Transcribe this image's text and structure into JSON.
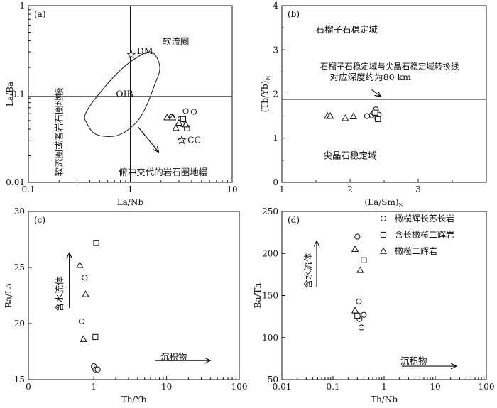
{
  "chart_data": [
    {
      "id": "a",
      "type": "scatter",
      "panel_label": "(a)",
      "xlabel": "La/Nb",
      "ylabel": "La/Ba",
      "x_scale": "log",
      "y_scale": "log",
      "xlim": [
        0.1,
        10
      ],
      "ylim": [
        0.01,
        1
      ],
      "x_ticks": [
        {
          "v": 0.1,
          "label": "0.1"
        },
        {
          "v": 1,
          "label": "1"
        },
        {
          "v": 10,
          "label": "10"
        }
      ],
      "y_ticks": [
        {
          "v": 0.01,
          "label": "0.01"
        },
        {
          "v": 0.1,
          "label": "0.1"
        },
        {
          "v": 1,
          "label": "1"
        }
      ],
      "ref_lines": [
        {
          "axis": "x",
          "value": 1
        },
        {
          "axis": "y",
          "value": 0.094
        }
      ],
      "oib_field": {
        "label": "OIB",
        "label_at": [
          0.88,
          0.1
        ],
        "outline": [
          [
            0.37,
            0.048
          ],
          [
            0.46,
            0.035
          ],
          [
            0.75,
            0.034
          ],
          [
            1.15,
            0.048
          ],
          [
            1.45,
            0.075
          ],
          [
            1.7,
            0.12
          ],
          [
            1.95,
            0.2
          ],
          [
            1.6,
            0.3
          ],
          [
            1.05,
            0.24
          ],
          [
            0.7,
            0.16
          ],
          [
            0.43,
            0.082
          ],
          [
            0.36,
            0.058
          ]
        ]
      },
      "arrow": {
        "from": [
          1.2,
          0.042
        ],
        "to": [
          1.9,
          0.022
        ]
      },
      "annotations": [
        {
          "text": "软流圈",
          "at": [
            2.8,
            0.39
          ]
        },
        {
          "text": "软流圈或者岩石圈地幔",
          "at": [
            0.215,
            0.04
          ],
          "rotate": -90
        },
        {
          "text": "俯冲交代的岩石圈地幔",
          "at": [
            2.1,
            0.013
          ]
        }
      ],
      "reference_points": [
        {
          "name": "DM",
          "x": 1.02,
          "y": 0.28
        },
        {
          "name": "CC",
          "x": 3.2,
          "y": 0.03
        }
      ],
      "series": [
        {
          "name": "橄榄辉长苏长岩",
          "marker": "circle",
          "points": [
            [
              3.1,
              0.052
            ],
            [
              3.5,
              0.064
            ],
            [
              4.2,
              0.063
            ],
            [
              2.55,
              0.055
            ],
            [
              3.2,
              0.046
            ]
          ]
        },
        {
          "name": "含长橄榄二辉岩",
          "marker": "square",
          "points": [
            [
              3.6,
              0.041
            ],
            [
              3.3,
              0.052
            ]
          ]
        },
        {
          "name": "橄榄二辉岩",
          "marker": "triangle",
          "points": [
            [
              2.3,
              0.054
            ],
            [
              2.6,
              0.054
            ],
            [
              2.8,
              0.041
            ],
            [
              3.5,
              0.045
            ],
            [
              3.0,
              0.047
            ]
          ]
        }
      ]
    },
    {
      "id": "b",
      "type": "scatter",
      "panel_label": "(b)",
      "xlabel": "(La/Sm)",
      "xlabel_sub": "N",
      "ylabel": "(Tb/Yb)",
      "ylabel_sub": "N",
      "x_scale": "linear",
      "y_scale": "linear",
      "xlim": [
        1,
        4
      ],
      "ylim": [
        0,
        4
      ],
      "x_ticks": [
        {
          "v": 1,
          "label": "1"
        },
        {
          "v": 2,
          "label": "2"
        },
        {
          "v": 3,
          "label": "3"
        }
      ],
      "y_ticks": [
        {
          "v": 0,
          "label": "0"
        },
        {
          "v": 1,
          "label": "1"
        },
        {
          "v": 2,
          "label": "2"
        },
        {
          "v": 3,
          "label": "3"
        },
        {
          "v": 4,
          "label": "4"
        }
      ],
      "ref_lines": [
        {
          "axis": "y",
          "value": 1.88
        }
      ],
      "arrow": {
        "from": [
          2.32,
          2.1
        ],
        "to": [
          2.45,
          1.94
        ]
      },
      "annotations": [
        {
          "text": "石榴子石稳定域",
          "at": [
            1.95,
            3.45
          ]
        },
        {
          "text": "石榴子石稳定域与尖晶石稳定域转换线",
          "at": [
            2.58,
            2.63
          ]
        },
        {
          "text": "对应深度约为80 km",
          "at": [
            2.3,
            2.38
          ]
        },
        {
          "text": "尖晶石稳定域",
          "at": [
            2.0,
            0.6
          ]
        }
      ],
      "series": [
        {
          "name": "橄榄辉长苏长岩",
          "marker": "circle",
          "points": [
            [
              2.32,
              1.52
            ],
            [
              2.35,
              1.57
            ],
            [
              2.38,
              1.65
            ],
            [
              2.42,
              1.53
            ],
            [
              2.25,
              1.5
            ],
            [
              2.4,
              1.45
            ]
          ]
        },
        {
          "name": "含长橄榄二辉岩",
          "marker": "square",
          "points": [
            [
              2.41,
              1.43
            ],
            [
              2.37,
              1.58
            ]
          ]
        },
        {
          "name": "橄榄二辉岩",
          "marker": "triangle",
          "points": [
            [
              1.67,
              1.5
            ],
            [
              1.71,
              1.5
            ],
            [
              1.93,
              1.45
            ],
            [
              2.05,
              1.49
            ]
          ]
        }
      ]
    },
    {
      "id": "c",
      "type": "scatter",
      "panel_label": "(c)",
      "xlabel": "Th/Yb",
      "ylabel": "Ba/La",
      "x_scale": "log",
      "y_scale": "linear",
      "xlim_display": [
        0,
        100
      ],
      "ylim": [
        15,
        30
      ],
      "x_ticks": [
        {
          "v": 0,
          "label": "0"
        },
        {
          "v": 1,
          "label": "1"
        },
        {
          "v": 10,
          "label": "10"
        },
        {
          "v": 100,
          "label": "100"
        }
      ],
      "y_ticks": [
        {
          "v": 15,
          "label": "15"
        },
        {
          "v": 20,
          "label": "20"
        },
        {
          "v": 25,
          "label": "25"
        },
        {
          "v": 30,
          "label": "30"
        }
      ],
      "annotations": [
        {
          "text": "含水流体",
          "at": [
            0.37,
            22.9
          ],
          "rotate": -90
        },
        {
          "text": "沉积物",
          "at": [
            12.5,
            17.0
          ]
        }
      ],
      "arrows": [
        {
          "from": [
            0.46,
            21.4
          ],
          "to": [
            0.46,
            26.3
          ]
        },
        {
          "from": [
            7.0,
            16.7
          ],
          "to": [
            40.0,
            16.7
          ]
        }
      ],
      "series": [
        {
          "name": "橄榄辉长苏长岩",
          "marker": "circle",
          "points": [
            [
              0.75,
              24.1
            ],
            [
              0.68,
              20.2
            ],
            [
              1.0,
              16.2
            ],
            [
              1.05,
              15.9
            ],
            [
              1.13,
              15.9
            ]
          ]
        },
        {
          "name": "含长橄榄二辉岩",
          "marker": "square",
          "points": [
            [
              1.08,
              27.2
            ],
            [
              1.05,
              18.8
            ]
          ]
        },
        {
          "name": "橄榄二辉岩",
          "marker": "triangle",
          "points": [
            [
              0.64,
              25.2
            ],
            [
              0.77,
              22.6
            ],
            [
              0.72,
              18.6
            ]
          ]
        }
      ]
    },
    {
      "id": "d",
      "type": "scatter",
      "panel_label": "(d)",
      "xlabel": "Th/Nb",
      "ylabel": "Ba/Th",
      "x_scale": "log",
      "y_scale": "linear",
      "xlim": [
        0.01,
        100
      ],
      "ylim": [
        50,
        250
      ],
      "x_ticks": [
        {
          "v": 0.01,
          "label": "0.01"
        },
        {
          "v": 0.1,
          "label": "0.1"
        },
        {
          "v": 1,
          "label": "1"
        },
        {
          "v": 10,
          "label": "10"
        },
        {
          "v": 100,
          "label": "100"
        }
      ],
      "y_ticks": [
        {
          "v": 50,
          "label": "50"
        },
        {
          "v": 100,
          "label": "100"
        },
        {
          "v": 150,
          "label": "150"
        },
        {
          "v": 200,
          "label": "200"
        },
        {
          "v": 250,
          "label": "250"
        }
      ],
      "legend": {
        "position": "top-right"
      },
      "annotations": [
        {
          "text": "含水流体",
          "at": [
            0.038,
            183
          ],
          "rotate": -90
        },
        {
          "text": "沉积物",
          "at": [
            3.8,
            72
          ]
        }
      ],
      "arrows": [
        {
          "from": [
            0.048,
            160
          ],
          "to": [
            0.048,
            215
          ]
        },
        {
          "from": [
            2.2,
            66
          ],
          "to": [
            26.0,
            66
          ]
        }
      ],
      "series": [
        {
          "name": "橄榄辉长苏长岩",
          "marker": "circle",
          "points": [
            [
              0.3,
              220
            ],
            [
              0.32,
              143
            ],
            [
              0.4,
              127
            ],
            [
              0.33,
              122
            ],
            [
              0.36,
              112
            ]
          ]
        },
        {
          "name": "含长橄榄二辉岩",
          "marker": "square",
          "points": [
            [
              0.4,
              192
            ],
            [
              0.3,
              126
            ]
          ]
        },
        {
          "name": "橄榄二辉岩",
          "marker": "triangle",
          "points": [
            [
              0.27,
              205
            ],
            [
              0.34,
              180
            ],
            [
              0.27,
              132
            ]
          ]
        }
      ]
    }
  ]
}
